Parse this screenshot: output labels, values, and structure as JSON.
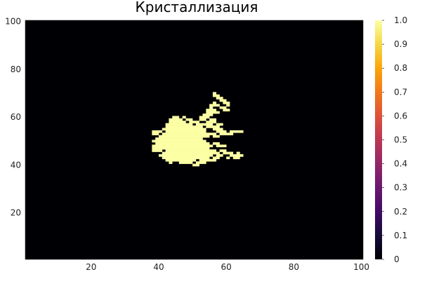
{
  "chart_data": {
    "type": "heatmap",
    "title": "Кристаллизация",
    "xlabel": "",
    "ylabel": "",
    "xlim": [
      1,
      100
    ],
    "ylim": [
      1,
      100
    ],
    "x_ticks": [
      20,
      40,
      60,
      80,
      100
    ],
    "y_ticks": [
      20,
      40,
      60,
      80,
      100
    ],
    "grid": false,
    "colormap": "inferno",
    "colorbar": {
      "range": [
        0,
        1
      ],
      "ticks": [
        0,
        0.1,
        0.2,
        0.3,
        0.4,
        0.5,
        0.6,
        0.7,
        0.8,
        0.9,
        1
      ],
      "tick_labels": [
        "0",
        "0.1",
        "0.2",
        "0.3",
        "0.4",
        "0.5",
        "0.6",
        "0.7",
        "0.8",
        "0.9",
        "1.0"
      ]
    },
    "background_value": 0,
    "cluster_value": 1,
    "cluster_rows": [
      {
        "y": 70,
        "x": [
          [
            56,
            56
          ]
        ]
      },
      {
        "y": 69,
        "x": [
          [
            56,
            57
          ]
        ]
      },
      {
        "y": 68,
        "x": [
          [
            57,
            58
          ]
        ]
      },
      {
        "y": 67,
        "x": [
          [
            58,
            59
          ]
        ]
      },
      {
        "y": 66,
        "x": [
          [
            56,
            56
          ],
          [
            59,
            60
          ]
        ]
      },
      {
        "y": 65,
        "x": [
          [
            55,
            57
          ],
          [
            60,
            60
          ]
        ]
      },
      {
        "y": 64,
        "x": [
          [
            55,
            55
          ],
          [
            58,
            59
          ]
        ]
      },
      {
        "y": 63,
        "x": [
          [
            54,
            56
          ],
          [
            59,
            60
          ]
        ]
      },
      {
        "y": 62,
        "x": [
          [
            54,
            57
          ]
        ]
      },
      {
        "y": 61,
        "x": [
          [
            53,
            55
          ]
        ]
      },
      {
        "y": 60,
        "x": [
          [
            44,
            45
          ],
          [
            47,
            47
          ],
          [
            52,
            54
          ]
        ]
      },
      {
        "y": 59,
        "x": [
          [
            43,
            46
          ],
          [
            48,
            49
          ],
          [
            52,
            53
          ],
          [
            55,
            56
          ]
        ]
      },
      {
        "y": 58,
        "x": [
          [
            43,
            47
          ],
          [
            49,
            51
          ],
          [
            54,
            56
          ]
        ]
      },
      {
        "y": 57,
        "x": [
          [
            42,
            49
          ],
          [
            51,
            55
          ],
          [
            57,
            58
          ]
        ]
      },
      {
        "y": 56,
        "x": [
          [
            42,
            52
          ],
          [
            54,
            57
          ]
        ]
      },
      {
        "y": 55,
        "x": [
          [
            41,
            53
          ],
          [
            56,
            58
          ]
        ]
      },
      {
        "y": 54,
        "x": [
          [
            38,
            40
          ],
          [
            42,
            53
          ],
          [
            57,
            59
          ],
          [
            61,
            64
          ]
        ]
      },
      {
        "y": 53,
        "x": [
          [
            38,
            39
          ],
          [
            41,
            56
          ],
          [
            58,
            61
          ]
        ]
      },
      {
        "y": 52,
        "x": [
          [
            40,
            54
          ],
          [
            56,
            57
          ]
        ]
      },
      {
        "y": 51,
        "x": [
          [
            39,
            52
          ]
        ]
      },
      {
        "y": 50,
        "x": [
          [
            38,
            53
          ]
        ]
      },
      {
        "y": 49,
        "x": [
          [
            39,
            54
          ],
          [
            56,
            57
          ]
        ]
      },
      {
        "y": 48,
        "x": [
          [
            38,
            55
          ],
          [
            57,
            59
          ]
        ]
      },
      {
        "y": 47,
        "x": [
          [
            38,
            54
          ]
        ]
      },
      {
        "y": 46,
        "x": [
          [
            38,
            40
          ],
          [
            42,
            56
          ],
          [
            58,
            59
          ]
        ]
      },
      {
        "y": 45,
        "x": [
          [
            41,
            57
          ],
          [
            59,
            61
          ],
          [
            63,
            63
          ]
        ]
      },
      {
        "y": 44,
        "x": [
          [
            40,
            55
          ],
          [
            57,
            58
          ],
          [
            61,
            64
          ]
        ]
      },
      {
        "y": 43,
        "x": [
          [
            41,
            54
          ],
          [
            56,
            57
          ],
          [
            60,
            60
          ],
          [
            62,
            63
          ]
        ]
      },
      {
        "y": 42,
        "x": [
          [
            42,
            50
          ],
          [
            52,
            56
          ]
        ]
      },
      {
        "y": 41,
        "x": [
          [
            43,
            43
          ],
          [
            46,
            49
          ],
          [
            51,
            53
          ]
        ]
      },
      {
        "y": 40,
        "x": [
          [
            50,
            51
          ]
        ]
      }
    ]
  }
}
